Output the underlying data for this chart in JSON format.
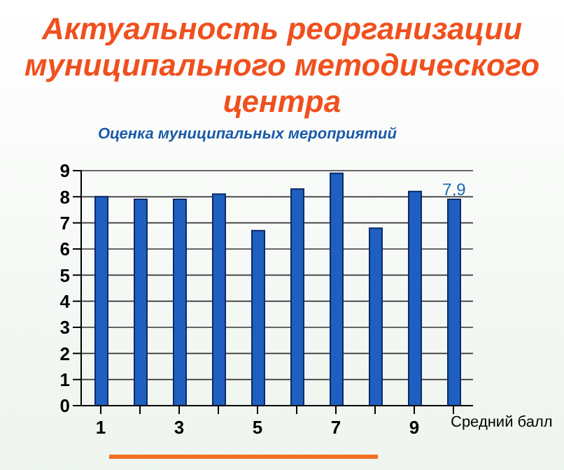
{
  "chart_data": {
    "type": "bar",
    "title": "Актуальность реорганизации муниципального методического центра",
    "subtitle": "Оценка муниципальных мероприятий",
    "categories": [
      "1",
      null,
      "3",
      null,
      "5",
      null,
      "7",
      null,
      "9",
      null
    ],
    "xlabel": "Средний балл",
    "values": [
      8.0,
      7.9,
      7.9,
      8.1,
      6.7,
      8.3,
      8.9,
      6.8,
      8.2,
      7.9
    ],
    "value_labels": [
      null,
      null,
      null,
      null,
      null,
      null,
      null,
      null,
      null,
      "7,9"
    ],
    "color": "#1f5fbf",
    "ylim": [
      0,
      9
    ],
    "yticks": [
      0,
      1,
      2,
      3,
      4,
      5,
      6,
      7,
      8,
      9
    ],
    "grid": "y"
  }
}
